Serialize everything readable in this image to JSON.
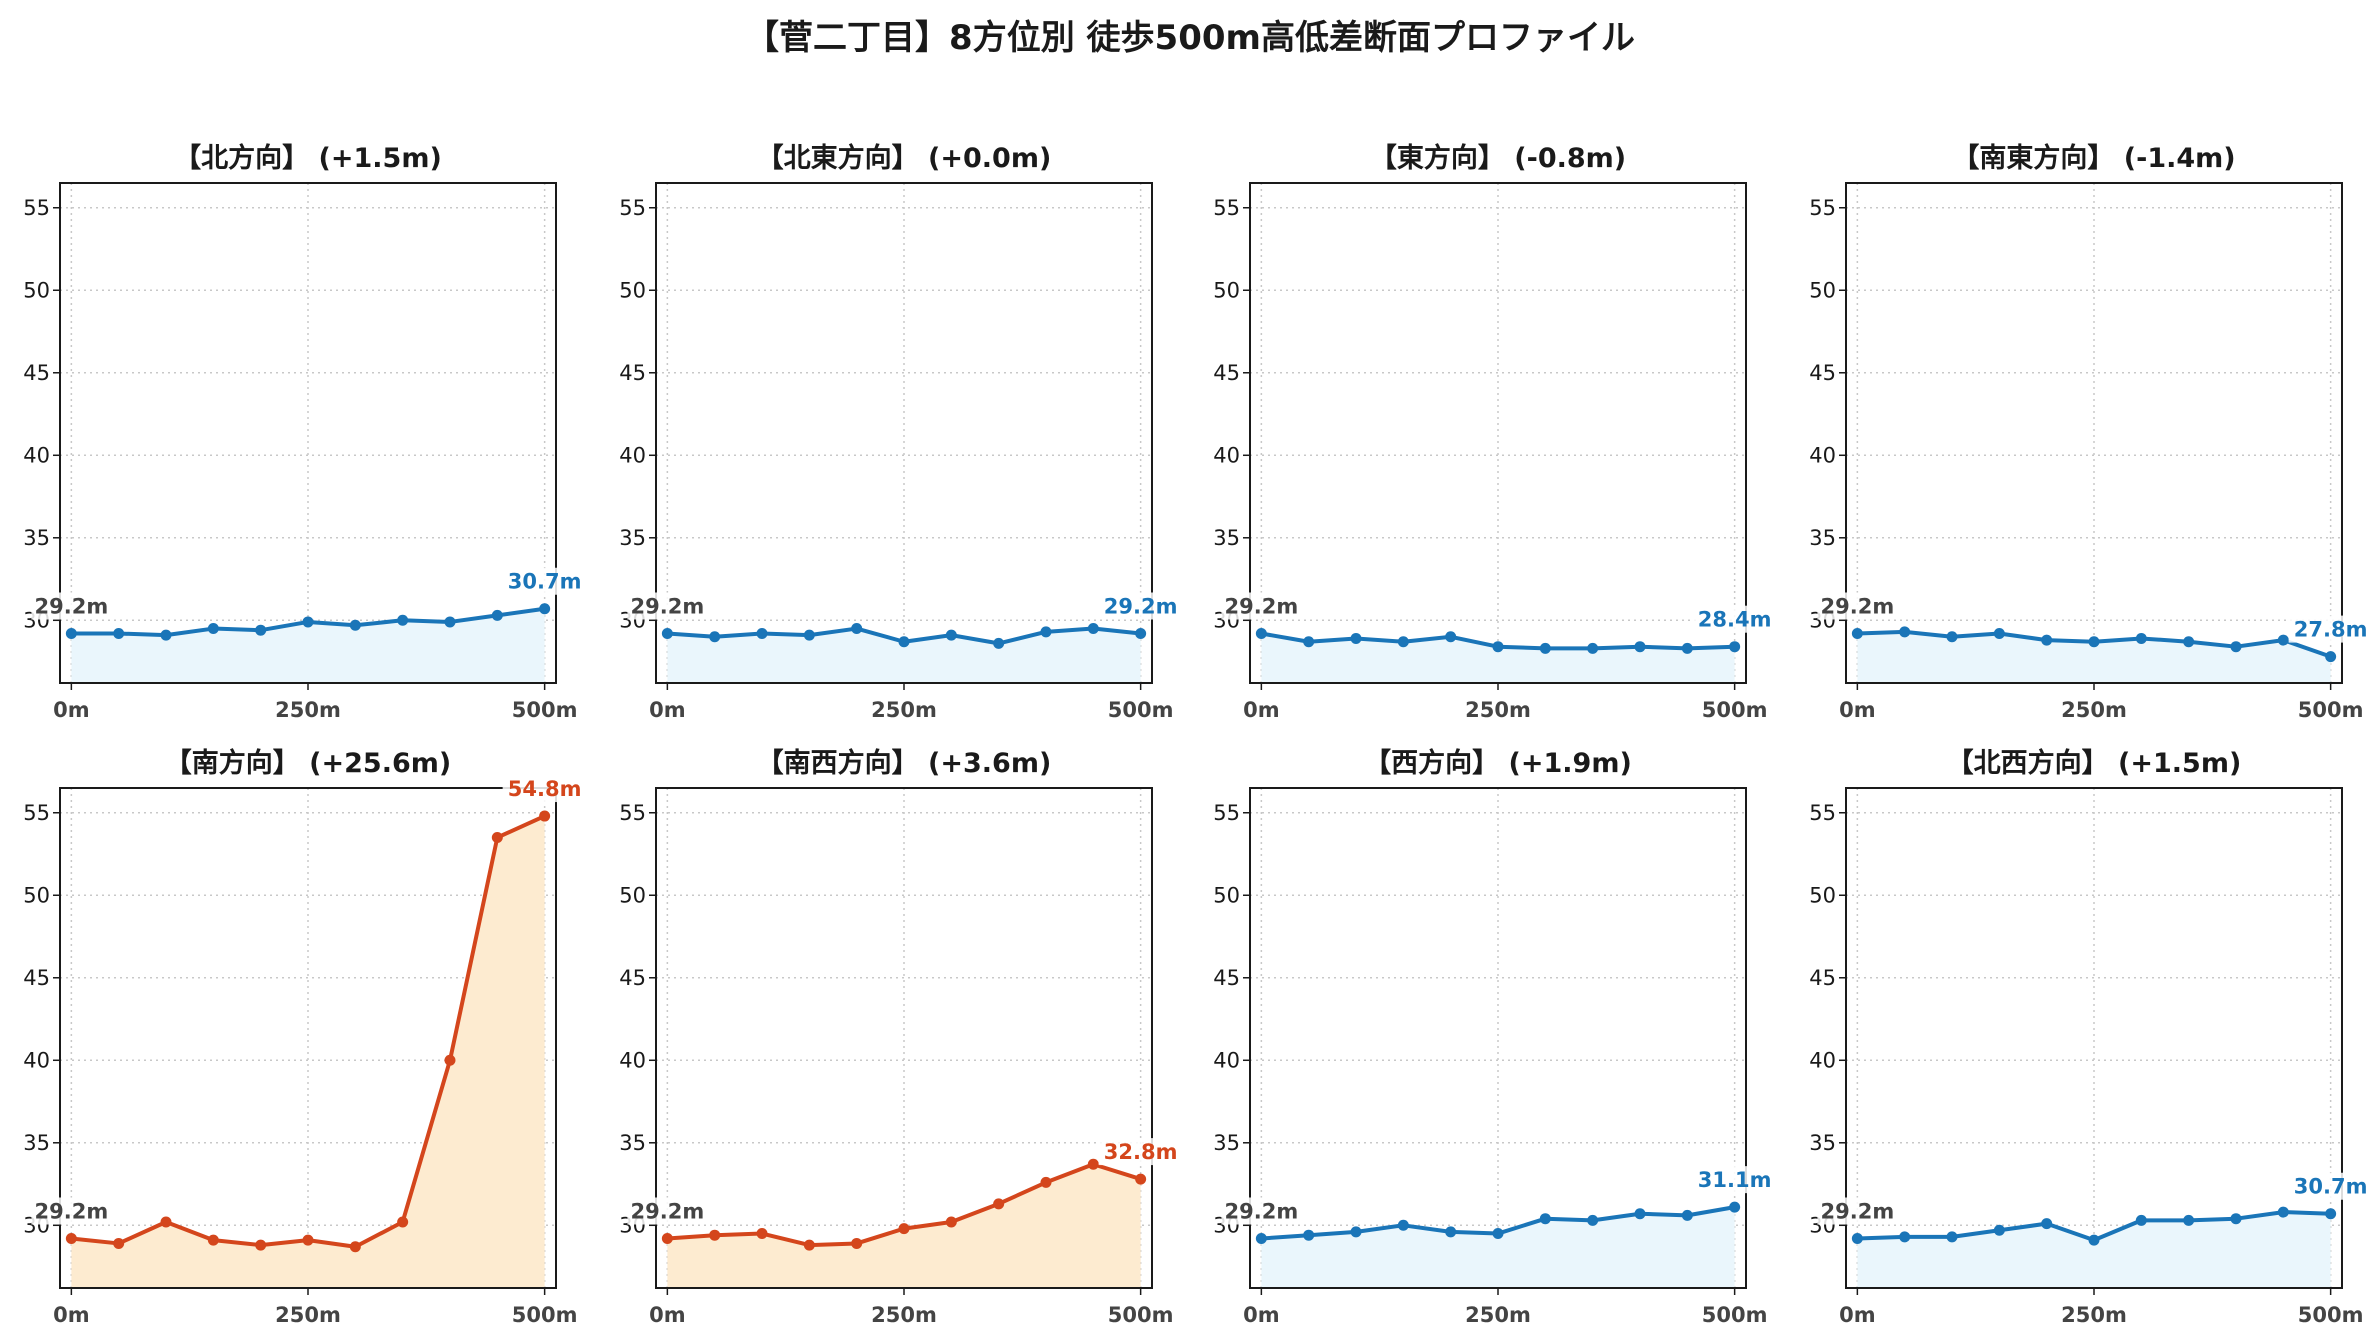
{
  "title": "【菅二丁目】8方位別 徒歩500m高低差断面プロファイル",
  "colors": {
    "flat_line": "#1a75b8",
    "flat_fill": "#eaf6fc",
    "up_line": "#d4461c",
    "up_fill": "#fdebd0",
    "start_label": "#444444",
    "grid": "#c8c8c8"
  },
  "chart_data": [
    {
      "type": "line",
      "title": "【北方向】 (+1.5m)",
      "highlight": false,
      "x": [
        0,
        50,
        100,
        150,
        200,
        250,
        300,
        350,
        400,
        450,
        500
      ],
      "y": [
        29.2,
        29.2,
        29.1,
        29.5,
        29.4,
        29.9,
        29.7,
        30.0,
        29.9,
        30.3,
        30.7
      ],
      "start_label": "29.2m",
      "end_label": "30.7m",
      "xticks": [
        "0m",
        "250m",
        "500m"
      ],
      "yticks": [
        30,
        35,
        40,
        45,
        50,
        55
      ],
      "ylim": [
        26.2,
        56.5
      ],
      "xlim": [
        -12,
        512
      ],
      "grid": true
    },
    {
      "type": "line",
      "title": "【北東方向】 (+0.0m)",
      "highlight": false,
      "x": [
        0,
        50,
        100,
        150,
        200,
        250,
        300,
        350,
        400,
        450,
        500
      ],
      "y": [
        29.2,
        29.0,
        29.2,
        29.1,
        29.5,
        28.7,
        29.1,
        28.6,
        29.3,
        29.5,
        29.2
      ],
      "start_label": "29.2m",
      "end_label": "29.2m",
      "xticks": [
        "0m",
        "250m",
        "500m"
      ],
      "yticks": [
        30,
        35,
        40,
        45,
        50,
        55
      ],
      "ylim": [
        26.2,
        56.5
      ],
      "xlim": [
        -12,
        512
      ],
      "grid": true
    },
    {
      "type": "line",
      "title": "【東方向】 (-0.8m)",
      "highlight": false,
      "x": [
        0,
        50,
        100,
        150,
        200,
        250,
        300,
        350,
        400,
        450,
        500
      ],
      "y": [
        29.2,
        28.7,
        28.9,
        28.7,
        29.0,
        28.4,
        28.3,
        28.3,
        28.4,
        28.3,
        28.4
      ],
      "start_label": "29.2m",
      "end_label": "28.4m",
      "xticks": [
        "0m",
        "250m",
        "500m"
      ],
      "yticks": [
        30,
        35,
        40,
        45,
        50,
        55
      ],
      "ylim": [
        26.2,
        56.5
      ],
      "xlim": [
        -12,
        512
      ],
      "grid": true
    },
    {
      "type": "line",
      "title": "【南東方向】 (-1.4m)",
      "highlight": false,
      "x": [
        0,
        50,
        100,
        150,
        200,
        250,
        300,
        350,
        400,
        450,
        500
      ],
      "y": [
        29.2,
        29.3,
        29.0,
        29.2,
        28.8,
        28.7,
        28.9,
        28.7,
        28.4,
        28.8,
        27.8
      ],
      "start_label": "29.2m",
      "end_label": "27.8m",
      "xticks": [
        "0m",
        "250m",
        "500m"
      ],
      "yticks": [
        30,
        35,
        40,
        45,
        50,
        55
      ],
      "ylim": [
        26.2,
        56.5
      ],
      "xlim": [
        -12,
        512
      ],
      "grid": true
    },
    {
      "type": "line",
      "title": "【南方向】 (+25.6m)",
      "highlight": true,
      "x": [
        0,
        50,
        100,
        150,
        200,
        250,
        300,
        350,
        400,
        450,
        500
      ],
      "y": [
        29.2,
        28.9,
        30.2,
        29.1,
        28.8,
        29.1,
        28.7,
        30.2,
        40.0,
        53.5,
        54.8
      ],
      "start_label": "29.2m",
      "end_label": "54.8m",
      "xticks": [
        "0m",
        "250m",
        "500m"
      ],
      "yticks": [
        30,
        35,
        40,
        45,
        50,
        55
      ],
      "ylim": [
        26.2,
        56.5
      ],
      "xlim": [
        -12,
        512
      ],
      "grid": true
    },
    {
      "type": "line",
      "title": "【南西方向】 (+3.6m)",
      "highlight": true,
      "x": [
        0,
        50,
        100,
        150,
        200,
        250,
        300,
        350,
        400,
        450,
        500
      ],
      "y": [
        29.2,
        29.4,
        29.5,
        28.8,
        28.9,
        29.8,
        30.2,
        31.3,
        32.6,
        33.7,
        32.8
      ],
      "start_label": "29.2m",
      "end_label": "32.8m",
      "xticks": [
        "0m",
        "250m",
        "500m"
      ],
      "yticks": [
        30,
        35,
        40,
        45,
        50,
        55
      ],
      "ylim": [
        26.2,
        56.5
      ],
      "xlim": [
        -12,
        512
      ],
      "grid": true
    },
    {
      "type": "line",
      "title": "【西方向】 (+1.9m)",
      "highlight": false,
      "x": [
        0,
        50,
        100,
        150,
        200,
        250,
        300,
        350,
        400,
        450,
        500
      ],
      "y": [
        29.2,
        29.4,
        29.6,
        30.0,
        29.6,
        29.5,
        30.4,
        30.3,
        30.7,
        30.6,
        31.1
      ],
      "start_label": "29.2m",
      "end_label": "31.1m",
      "xticks": [
        "0m",
        "250m",
        "500m"
      ],
      "yticks": [
        30,
        35,
        40,
        45,
        50,
        55
      ],
      "ylim": [
        26.2,
        56.5
      ],
      "xlim": [
        -12,
        512
      ],
      "grid": true
    },
    {
      "type": "line",
      "title": "【北西方向】 (+1.5m)",
      "highlight": false,
      "x": [
        0,
        50,
        100,
        150,
        200,
        250,
        300,
        350,
        400,
        450,
        500
      ],
      "y": [
        29.2,
        29.3,
        29.3,
        29.7,
        30.1,
        29.1,
        30.3,
        30.3,
        30.4,
        30.8,
        30.7
      ],
      "start_label": "29.2m",
      "end_label": "30.7m",
      "xticks": [
        "0m",
        "250m",
        "500m"
      ],
      "yticks": [
        30,
        35,
        40,
        45,
        50,
        55
      ],
      "ylim": [
        26.2,
        56.5
      ],
      "xlim": [
        -12,
        512
      ],
      "grid": true
    }
  ]
}
